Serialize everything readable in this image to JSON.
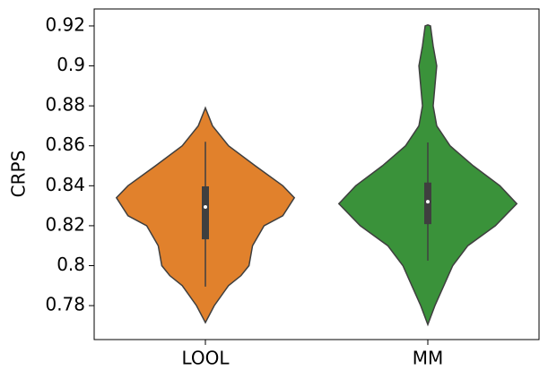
{
  "chart_data": {
    "type": "violin",
    "y_label": "CRPS",
    "categories": [
      "LOOL",
      "MM"
    ],
    "series": [
      {
        "name": "LOOL",
        "color": "#e1812c",
        "density_y": [
          0.7715,
          0.78,
          0.79,
          0.795,
          0.8,
          0.81,
          0.82,
          0.825,
          0.834,
          0.84,
          0.85,
          0.86,
          0.87,
          0.879
        ],
        "density": [
          0,
          0.1,
          0.26,
          0.4,
          0.49,
          0.53,
          0.66,
          0.87,
          1,
          0.87,
          0.56,
          0.26,
          0.08,
          0
        ],
        "whisker_low": 0.7895,
        "q1": 0.8132,
        "median": 0.8294,
        "q3": 0.8397,
        "whisker_high": 0.862
      },
      {
        "name": "MM",
        "color": "#3a923a",
        "density_y": [
          0.7705,
          0.78,
          0.79,
          0.8,
          0.81,
          0.82,
          0.831,
          0.84,
          0.85,
          0.86,
          0.87,
          0.88,
          0.89,
          0.9,
          0.91,
          0.92,
          0.9205
        ],
        "density": [
          0,
          0.08,
          0.18,
          0.28,
          0.45,
          0.76,
          1,
          0.81,
          0.51,
          0.25,
          0.1,
          0.06,
          0.08,
          0.1,
          0.06,
          0.03,
          0
        ],
        "whisker_low": 0.8025,
        "q1": 0.8208,
        "median": 0.832,
        "q3": 0.8416,
        "whisker_high": 0.8617
      }
    ],
    "ylim": [
      0.763,
      0.9285
    ],
    "yticks": [
      0.78,
      0.8,
      0.82,
      0.84,
      0.86,
      0.88,
      0.9,
      0.92
    ]
  }
}
